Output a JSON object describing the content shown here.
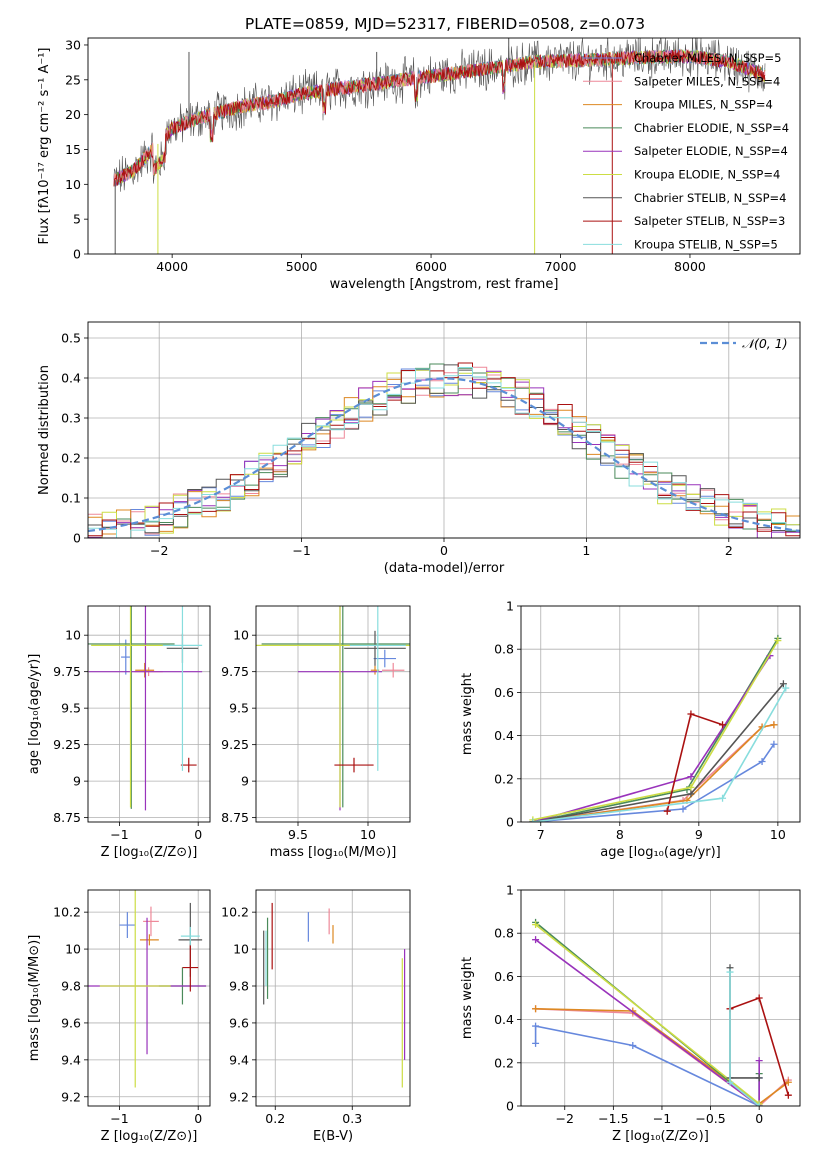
{
  "figure_title": "PLATE=0859, MJD=52317, FIBERID=0508, z=0.073",
  "colors": [
    "#6688dd",
    "#ee8899",
    "#dd8822",
    "#4a8a5a",
    "#9933bb",
    "#ccdd44",
    "#555555",
    "#aa1111",
    "#88dddd"
  ],
  "chart_data": [
    {
      "id": "spectrum",
      "type": "line",
      "xlabel": "wavelength [Angstrom, rest frame]",
      "ylabel": "Flux [fλ10⁻¹⁷ erg cm⁻² s⁻¹ A⁻¹]",
      "xlim": [
        3350,
        8850
      ],
      "ylim": [
        0,
        31
      ],
      "xticks": [
        4000,
        5000,
        6000,
        7000,
        8000
      ],
      "yticks": [
        0,
        5,
        10,
        15,
        20,
        25,
        30
      ],
      "grid": false,
      "legend_position": "top-right",
      "series": [
        {
          "name": "Chabrier MILES, N_SSP=5"
        },
        {
          "name": "Salpeter MILES, N_SSP=4"
        },
        {
          "name": "Kroupa MILES, N_SSP=4"
        },
        {
          "name": "Chabrier ELODIE, N_SSP=4"
        },
        {
          "name": "Salpeter ELODIE, N_SSP=4"
        },
        {
          "name": "Kroupa ELODIE, N_SSP=4"
        },
        {
          "name": "Chabrier STELIB, N_SSP=4"
        },
        {
          "name": "Salpeter STELIB, N_SSP=3"
        },
        {
          "name": "Kroupa STELIB, N_SSP=5"
        }
      ],
      "continuum": [
        [
          3550,
          10.5
        ],
        [
          3700,
          12
        ],
        [
          3900,
          16
        ],
        [
          4000,
          18
        ],
        [
          4200,
          19.5
        ],
        [
          4500,
          21
        ],
        [
          4800,
          22
        ],
        [
          5000,
          23
        ],
        [
          5300,
          23.8
        ],
        [
          5600,
          24.5
        ],
        [
          5900,
          25.3
        ],
        [
          6200,
          26
        ],
        [
          6500,
          26.8
        ],
        [
          6800,
          27.6
        ],
        [
          7200,
          27.8
        ],
        [
          7600,
          28.2
        ],
        [
          8000,
          28.4
        ],
        [
          8300,
          27.6
        ],
        [
          8600,
          25.5
        ]
      ],
      "spikes": [
        [
          3560,
          0
        ],
        [
          3890,
          0
        ],
        [
          4130,
          29
        ],
        [
          6800,
          0
        ],
        [
          7400,
          0
        ],
        [
          6600,
          31
        ],
        [
          5580,
          29
        ]
      ]
    },
    {
      "id": "residuals",
      "type": "bar",
      "xlabel": "(data-model)/error",
      "ylabel": "Normed distribution",
      "xlim": [
        -2.5,
        2.5
      ],
      "ylim": [
        0,
        0.54
      ],
      "xticks": [
        -2,
        -1,
        0,
        1,
        2
      ],
      "yticks": [
        0.0,
        0.1,
        0.2,
        0.3,
        0.4,
        0.5
      ],
      "grid": true,
      "legend_position": "top-right",
      "reference_label": "𝒩(0, 1)",
      "bin_width": 0.1
    },
    {
      "id": "age-vs-Z",
      "type": "scatter",
      "xlabel": "Z [log₁₀(Z/Z⊙)]",
      "ylabel": "age  [log₁₀(age/yr)]",
      "xlim": [
        -1.4,
        0.15
      ],
      "ylim": [
        8.72,
        10.2
      ],
      "xticks": [
        -1,
        0
      ],
      "yticks": [
        8.75,
        9.0,
        9.25,
        9.5,
        9.75,
        10.0
      ],
      "grid": true,
      "points": [
        {
          "x": -0.92,
          "y": 9.85,
          "xerr": 0.06,
          "yerr": 0.12
        },
        {
          "x": -0.63,
          "y": 9.75,
          "xerr": 0.18,
          "yerr": 0.03
        },
        {
          "x": -0.68,
          "y": 9.76,
          "xerr": 0.12,
          "yerr": 0.05
        },
        {
          "x": -0.85,
          "y": 9.94,
          "xerr": 0.55,
          "yerr": 1.13
        },
        {
          "x": -0.67,
          "y": 9.75,
          "xerr": 0.72,
          "yerr": 0.95
        },
        {
          "x": -0.86,
          "y": 9.93,
          "xerr": 0.5,
          "yerr": 1.11
        },
        {
          "x": -0.2,
          "y": 9.91,
          "xerr": 0.2,
          "yerr": 0.1
        },
        {
          "x": -0.12,
          "y": 9.11,
          "xerr": 0.1,
          "yerr": 0.05
        },
        {
          "x": -0.2,
          "y": 9.93,
          "xerr": 0.25,
          "yerr": 0.86
        }
      ]
    },
    {
      "id": "age-vs-mass",
      "type": "scatter",
      "xlabel": "mass [log₁₀(M/M⊙)]",
      "ylabel": "",
      "xlim": [
        9.2,
        10.3
      ],
      "ylim": [
        8.72,
        10.2
      ],
      "xticks": [
        9.5,
        10.0
      ],
      "yticks": [
        8.75,
        9.0,
        9.25,
        9.5,
        9.75,
        10.0
      ],
      "grid": true,
      "points": [
        {
          "x": 10.12,
          "y": 9.84,
          "xerr": 0.08,
          "yerr": 0.06
        },
        {
          "x": 10.18,
          "y": 9.76,
          "xerr": 0.08,
          "yerr": 0.05
        },
        {
          "x": 10.05,
          "y": 9.76,
          "xerr": 0.03,
          "yerr": 0.03
        },
        {
          "x": 9.82,
          "y": 9.94,
          "xerr": 0.58,
          "yerr": 1.12
        },
        {
          "x": 9.8,
          "y": 9.75,
          "xerr": 0.3,
          "yerr": 0.95
        },
        {
          "x": 9.8,
          "y": 9.93,
          "xerr": 0.6,
          "yerr": 1.11
        },
        {
          "x": 10.05,
          "y": 9.91,
          "xerr": 0.22,
          "yerr": 0.12
        },
        {
          "x": 9.9,
          "y": 9.11,
          "xerr": 0.14,
          "yerr": 0.05
        },
        {
          "x": 10.07,
          "y": 9.93,
          "xerr": 0.2,
          "yerr": 0.86
        }
      ]
    },
    {
      "id": "massweight-vs-age",
      "type": "line",
      "xlabel": "age  [log₁₀(age/yr)]",
      "ylabel": "mass weight",
      "xlim": [
        6.75,
        10.28
      ],
      "ylim": [
        0,
        1
      ],
      "xticks": [
        7,
        8,
        9,
        10
      ],
      "yticks": [
        0.0,
        0.2,
        0.4,
        0.6,
        0.8,
        1.0
      ],
      "grid": true,
      "series": [
        {
          "points": [
            [
              6.9,
              0.0
            ],
            [
              8.8,
              0.06
            ],
            [
              9.8,
              0.28
            ],
            [
              9.95,
              0.36
            ]
          ]
        },
        {
          "points": [
            [
              6.9,
              0.0
            ],
            [
              8.8,
              0.1
            ],
            [
              9.8,
              0.44
            ],
            [
              9.95,
              0.45
            ]
          ]
        },
        {
          "points": [
            [
              6.9,
              0.0
            ],
            [
              8.85,
              0.1
            ],
            [
              9.8,
              0.44
            ],
            [
              9.95,
              0.45
            ]
          ]
        },
        {
          "points": [
            [
              6.9,
              0.0
            ],
            [
              8.85,
              0.15
            ],
            [
              10.0,
              0.85
            ]
          ]
        },
        {
          "points": [
            [
              6.9,
              0.0
            ],
            [
              8.9,
              0.21
            ],
            [
              9.9,
              0.77
            ]
          ]
        },
        {
          "points": [
            [
              6.9,
              0.01
            ],
            [
              8.9,
              0.16
            ],
            [
              10.0,
              0.84
            ]
          ]
        },
        {
          "points": [
            [
              6.9,
              0.0
            ],
            [
              8.9,
              0.13
            ],
            [
              10.07,
              0.64
            ]
          ]
        },
        {
          "points": [
            [
              8.6,
              0.05
            ],
            [
              8.9,
              0.5
            ],
            [
              9.3,
              0.45
            ]
          ]
        },
        {
          "points": [
            [
              6.9,
              0.0
            ],
            [
              9.3,
              0.11
            ],
            [
              10.1,
              0.62
            ]
          ]
        }
      ]
    },
    {
      "id": "mass-vs-Z",
      "type": "scatter",
      "xlabel": "Z [log₁₀(Z/Z⊙)]",
      "ylabel": "mass [log₁₀(M/M⊙)]",
      "xlim": [
        -1.4,
        0.15
      ],
      "ylim": [
        9.15,
        10.32
      ],
      "xticks": [
        -1,
        0
      ],
      "yticks": [
        9.2,
        9.4,
        9.6,
        9.8,
        10.0,
        10.2
      ],
      "grid": true,
      "points": [
        {
          "x": -0.9,
          "y": 10.13,
          "xerr": 0.1,
          "yerr": 0.07
        },
        {
          "x": -0.6,
          "y": 10.15,
          "xerr": 0.1,
          "yerr": 0.08
        },
        {
          "x": -0.62,
          "y": 10.05,
          "xerr": 0.12,
          "yerr": 0.03
        },
        {
          "x": -0.2,
          "y": 9.8,
          "xerr": 0.3,
          "yerr": 0.1
        },
        {
          "x": -0.65,
          "y": 9.8,
          "xerr": 0.75,
          "yerr": 0.37
        },
        {
          "x": -0.8,
          "y": 9.8,
          "xerr": 0.45,
          "yerr": 0.55
        },
        {
          "x": -0.1,
          "y": 10.05,
          "xerr": 0.15,
          "yerr": 0.2
        },
        {
          "x": -0.1,
          "y": 9.9,
          "xerr": 0.1,
          "yerr": 0.13
        },
        {
          "x": -0.1,
          "y": 10.07,
          "xerr": 0.12,
          "yerr": 0.05
        }
      ]
    },
    {
      "id": "mass-vs-EBV",
      "type": "scatter",
      "xlabel": "E(B-V)",
      "ylabel": "",
      "xlim": [
        0.175,
        0.375
      ],
      "ylim": [
        9.15,
        10.32
      ],
      "xticks": [
        0.2,
        0.3
      ],
      "yticks": [
        9.2,
        9.4,
        9.6,
        9.8,
        10.0,
        10.2
      ],
      "grid": true,
      "points": [
        {
          "x": 0.243,
          "y": 10.12,
          "xerr": 0,
          "yerr": 0.08
        },
        {
          "x": 0.27,
          "y": 10.15,
          "xerr": 0,
          "yerr": 0.07
        },
        {
          "x": 0.275,
          "y": 10.08,
          "xerr": 0,
          "yerr": 0.05
        },
        {
          "x": 0.19,
          "y": 9.95,
          "xerr": 0,
          "yerr": 0.22
        },
        {
          "x": 0.368,
          "y": 9.7,
          "xerr": 0,
          "yerr": 0.3
        },
        {
          "x": 0.365,
          "y": 9.6,
          "xerr": 0,
          "yerr": 0.35
        },
        {
          "x": 0.185,
          "y": 9.9,
          "xerr": 0,
          "yerr": 0.2
        },
        {
          "x": 0.196,
          "y": 10.07,
          "xerr": 0,
          "yerr": 0.18
        },
        {
          "x": 0.188,
          "y": 9.95,
          "xerr": 0,
          "yerr": 0.15
        }
      ]
    },
    {
      "id": "massweight-vs-Z",
      "type": "line",
      "xlabel": "Z [log₁₀(Z/Z⊙)]",
      "ylabel": "mass weight",
      "xlim": [
        -2.45,
        0.42
      ],
      "ylim": [
        0,
        1
      ],
      "xticks": [
        -2.0,
        -1.5,
        -1.0,
        -0.5,
        0.0
      ],
      "yticks": [
        0.0,
        0.2,
        0.4,
        0.6,
        0.8,
        1.0
      ],
      "grid": true,
      "series": [
        {
          "points": [
            [
              -2.3,
              0.29
            ],
            [
              -2.3,
              0.37
            ],
            [
              -1.3,
              0.28
            ],
            [
              0.0,
              0.0
            ],
            [
              0.0,
              0.13
            ]
          ]
        },
        {
          "points": [
            [
              -2.3,
              0.45
            ],
            [
              -1.3,
              0.43
            ],
            [
              0.0,
              0.0
            ],
            [
              0.3,
              0.12
            ]
          ]
        },
        {
          "points": [
            [
              -2.3,
              0.45
            ],
            [
              -1.3,
              0.44
            ],
            [
              0.0,
              0.01
            ],
            [
              0.3,
              0.11
            ]
          ]
        },
        {
          "points": [
            [
              -2.3,
              0.85
            ],
            [
              0.0,
              0.0
            ],
            [
              0.0,
              0.15
            ]
          ]
        },
        {
          "points": [
            [
              -2.3,
              0.77
            ],
            [
              0.0,
              0.0
            ],
            [
              0.0,
              0.21
            ]
          ]
        },
        {
          "points": [
            [
              -2.3,
              0.84
            ],
            [
              0.0,
              0.01
            ]
          ]
        },
        {
          "points": [
            [
              -0.3,
              0.64
            ],
            [
              -0.3,
              0.13
            ],
            [
              0.0,
              0.13
            ]
          ]
        },
        {
          "points": [
            [
              -0.3,
              0.45
            ],
            [
              0.0,
              0.5
            ],
            [
              0.3,
              0.05
            ]
          ]
        },
        {
          "points": [
            [
              -0.3,
              0.62
            ],
            [
              -0.3,
              0.11
            ],
            [
              0.0,
              0.0
            ]
          ]
        }
      ]
    }
  ]
}
